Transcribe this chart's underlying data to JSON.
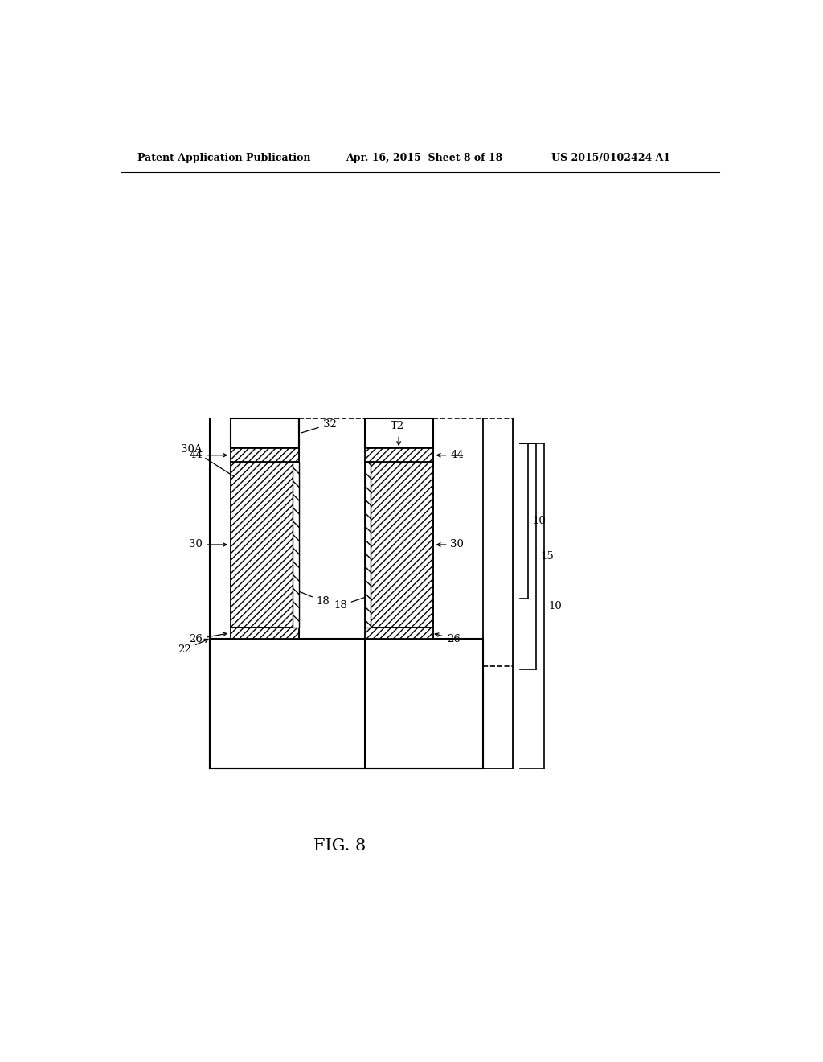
{
  "page_header_left": "Patent Application Publication",
  "page_header_center": "Apr. 16, 2015  Sheet 8 of 18",
  "page_header_right": "US 2015/0102424 A1",
  "figure_label": "FIG. 8",
  "bg_color": "#ffffff"
}
